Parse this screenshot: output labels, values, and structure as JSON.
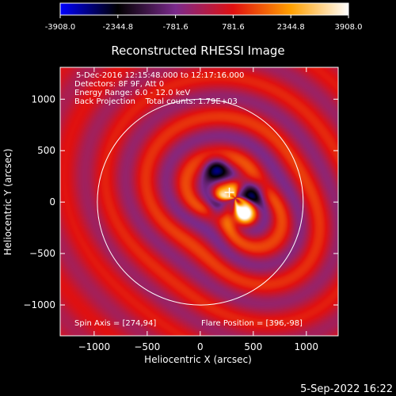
{
  "colorbar": {
    "ticks": [
      "-3908.0",
      "-2344.8",
      "-781.6",
      "781.6",
      "2344.8",
      "3908.0"
    ],
    "min": -3908.0,
    "max": 3908.0,
    "colormap": [
      "#0000ff",
      "#000000",
      "#7a2a8c",
      "#e01010",
      "#ffa000",
      "#ffffff"
    ]
  },
  "plot": {
    "title": "Reconstructed RHESSI Image",
    "info_lines": [
      "5-Dec-2016 12:15:48.000 to 12:17:16.000",
      "Detectors: 8F 9F, Att 0",
      "Energy Range: 6.0 - 12.0 keV",
      "Back Projection    Total counts: 1.79E+03"
    ],
    "spin_axis": "Spin Axis = [274,94]",
    "flare_position": "Flare Position = [396,-98]",
    "timestamp": "5-Sep-2022 16:22",
    "marker": {
      "x": 274,
      "y": 94
    },
    "disk_radius_arcsec": 970
  },
  "chart_data": {
    "type": "heatmap",
    "title": "Reconstructed RHESSI Image",
    "xlabel": "Heliocentric X (arcsec)",
    "ylabel": "Heliocentric Y (arcsec)",
    "xlim": [
      -1320,
      1300
    ],
    "ylim": [
      -1300,
      1310
    ],
    "x_ticks": [
      -1000,
      -500,
      0,
      500,
      1000
    ],
    "y_ticks": [
      1000,
      500,
      0,
      -500,
      -1000
    ],
    "sources": [
      {
        "x": 396,
        "y": -120,
        "value": 3908,
        "sigma": 80
      },
      {
        "x": 200,
        "y": 40,
        "value": 2500,
        "sigma": 60
      },
      {
        "x": 350,
        "y": 160,
        "value": 2200,
        "sigma": 60
      },
      {
        "x": 150,
        "y": 330,
        "value": -2600,
        "sigma": 80
      },
      {
        "x": 500,
        "y": 100,
        "value": -2600,
        "sigma": 80
      },
      {
        "x": 170,
        "y": -60,
        "value": -2200,
        "sigma": 70
      }
    ]
  }
}
